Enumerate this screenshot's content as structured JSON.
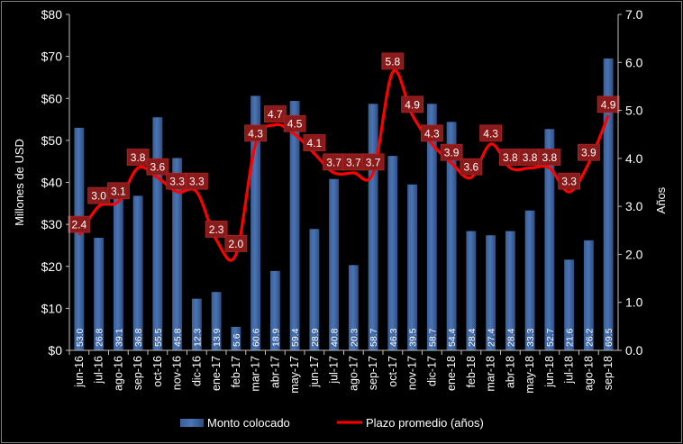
{
  "chart_data": {
    "type": "bar+line",
    "title": "",
    "categories": [
      "jun-16",
      "jul-16",
      "ago-16",
      "sep-16",
      "oct-16",
      "nov-16",
      "dic-16",
      "ene-17",
      "feb-17",
      "mar-17",
      "abr-17",
      "may-17",
      "jun-17",
      "jul-17",
      "ago-17",
      "sep-17",
      "oct-17",
      "nov-17",
      "dic-17",
      "ene-18",
      "feb-18",
      "mar-18",
      "abr-18",
      "may-18",
      "jun-18",
      "jul-18",
      "ago-18",
      "sep-18"
    ],
    "series": [
      {
        "name": "Monto colocado",
        "type": "bar",
        "axis": "left",
        "color": "#4a74b4",
        "values": [
          53.0,
          26.8,
          39.1,
          36.8,
          55.5,
          45.8,
          12.3,
          13.9,
          5.6,
          60.6,
          18.9,
          59.4,
          28.9,
          40.8,
          20.3,
          58.7,
          46.3,
          39.5,
          58.7,
          54.4,
          28.4,
          27.4,
          28.4,
          33.3,
          52.7,
          21.6,
          26.2,
          69.5
        ],
        "labels": [
          "53.0",
          "26.8",
          "39.1",
          "36.8",
          "55.5",
          "45.8",
          "12.3",
          "13.9",
          "5.6",
          "60.6",
          "18.9",
          "59.4",
          "28.9",
          "40.8",
          "20.3",
          "58.7",
          "46.3",
          "39.5",
          "58.7",
          "54.4",
          "28.4",
          "27.4",
          "28.4",
          "33.3",
          "52.7",
          "21.6",
          "26.2",
          "69.5"
        ]
      },
      {
        "name": "Plazo promedio (años)",
        "type": "line",
        "axis": "right",
        "color": "#ff0000",
        "values": [
          2.4,
          3.0,
          3.1,
          3.8,
          3.6,
          3.3,
          3.3,
          2.3,
          2.0,
          4.3,
          4.7,
          4.5,
          4.1,
          3.7,
          3.7,
          3.7,
          5.8,
          4.9,
          4.3,
          3.9,
          3.6,
          4.3,
          3.8,
          3.8,
          3.8,
          3.3,
          3.9,
          4.9
        ],
        "labels": [
          "2.4",
          "3.0",
          "3.1",
          "3.8",
          "3.6",
          "3.3",
          "3.3",
          "2.3",
          "2.0",
          "4.3",
          "4.7",
          "4.5",
          "4.1",
          "3.7",
          "3.7",
          "3.7",
          "5.8",
          "4.9",
          "4.3",
          "3.9",
          "3.6",
          "4.3",
          "3.8",
          "3.8",
          "3.8",
          "3.3",
          "3.9",
          "4.9"
        ]
      }
    ],
    "ylabel": "Millones de USD",
    "ylim": [
      0,
      80
    ],
    "yticks": [
      "$0",
      "$10",
      "$20",
      "$30",
      "$40",
      "$50",
      "$60",
      "$70",
      "$80"
    ],
    "y2label": "Años",
    "y2lim": [
      0,
      7
    ],
    "y2ticks": [
      "0.0",
      "1.0",
      "2.0",
      "3.0",
      "4.0",
      "5.0",
      "6.0",
      "7.0"
    ],
    "legend": {
      "position": "bottom",
      "entries": [
        "Monto colocado",
        "Plazo promedio (años)"
      ]
    },
    "grid": false
  }
}
